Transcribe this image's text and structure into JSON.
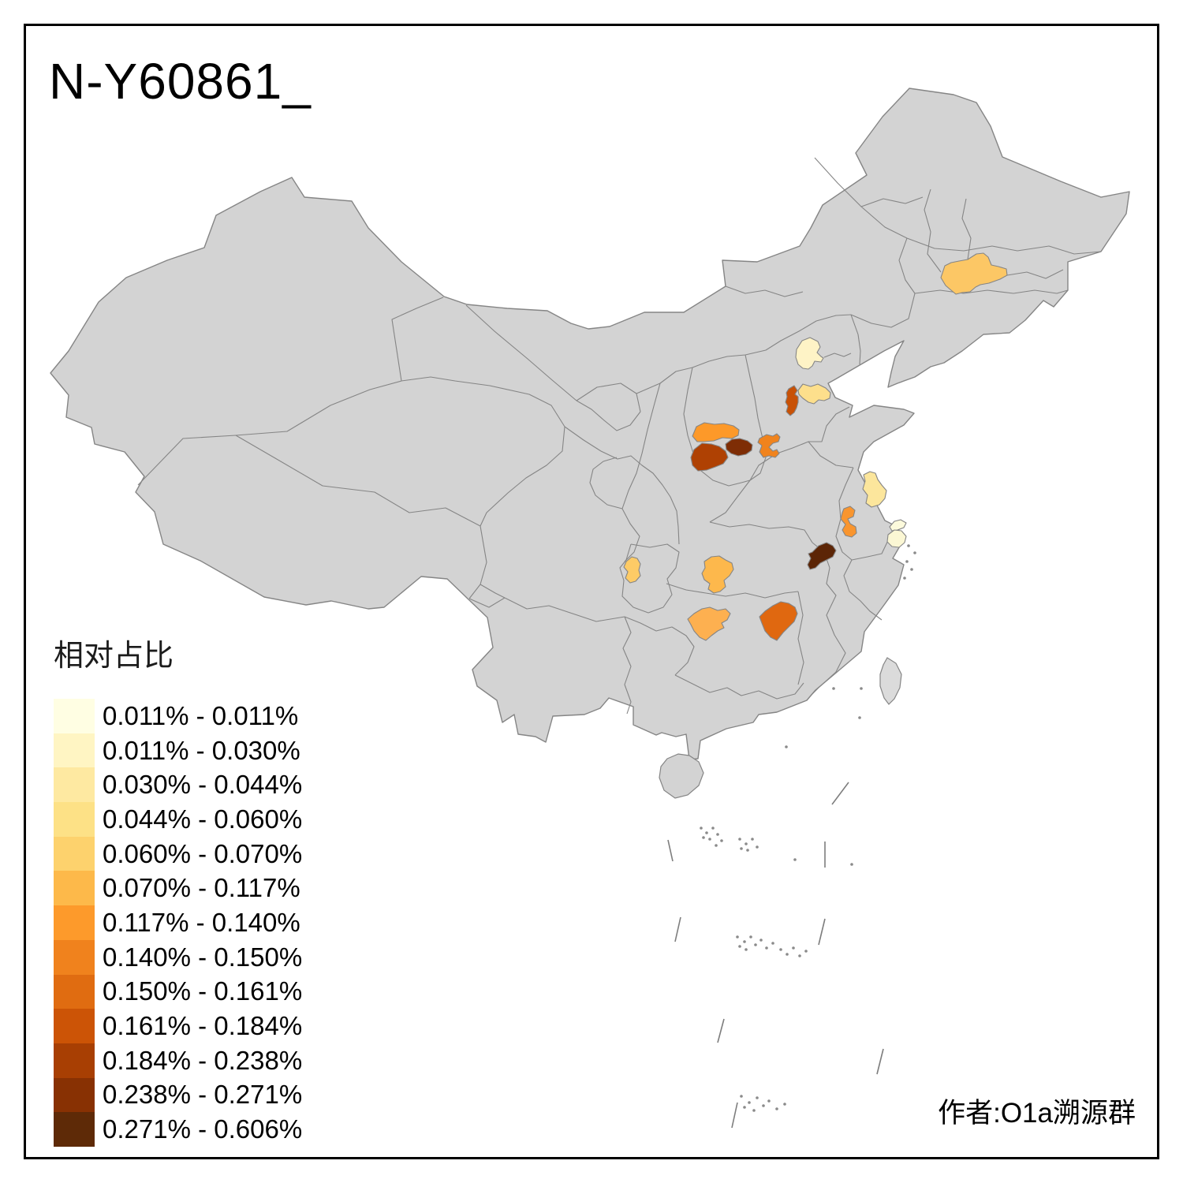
{
  "title": "N-Y60861_",
  "attribution": "作者:O1a溯源群",
  "legend": {
    "title": "相对占比",
    "items": [
      {
        "color": "#FFFEE3",
        "label": "0.011% - 0.011%"
      },
      {
        "color": "#FFF5C3",
        "label": "0.011% - 0.030%"
      },
      {
        "color": "#FEE9A1",
        "label": "0.030% - 0.044%"
      },
      {
        "color": "#FDE186",
        "label": "0.044% - 0.060%"
      },
      {
        "color": "#FDD26D",
        "label": "0.060% - 0.070%"
      },
      {
        "color": "#FDB94A",
        "label": "0.070% - 0.117%"
      },
      {
        "color": "#FD9A2B",
        "label": "0.117% - 0.140%"
      },
      {
        "color": "#F0821D",
        "label": "0.140% - 0.150%"
      },
      {
        "color": "#E06C11",
        "label": "0.150% - 0.161%"
      },
      {
        "color": "#CC5406",
        "label": "0.161% - 0.184%"
      },
      {
        "color": "#A83F03",
        "label": "0.184% - 0.238%"
      },
      {
        "color": "#883103",
        "label": "0.238% - 0.271%"
      },
      {
        "color": "#5E2A07",
        "label": "0.271% - 0.606%"
      }
    ]
  },
  "map": {
    "base_fill": "#D3D3D3",
    "taiwan_fill": "#DBDBDB",
    "boundary_color": "#858585",
    "regions": [
      {
        "id": "harbin",
        "fill": "#FCC765"
      },
      {
        "id": "beijing",
        "fill": "#FEF3C6"
      },
      {
        "id": "langfang",
        "fill": "#FDDF8C"
      },
      {
        "id": "tianjin",
        "fill": "#C85106"
      },
      {
        "id": "xinzhou",
        "fill": "#FD9929"
      },
      {
        "id": "lvliang",
        "fill": "#AF4103"
      },
      {
        "id": "jinzhong",
        "fill": "#7E2D05"
      },
      {
        "id": "shijiazhuang",
        "fill": "#F0831D"
      },
      {
        "id": "yancheng",
        "fill": "#FCE69C"
      },
      {
        "id": "huaian",
        "fill": "#F9952E"
      },
      {
        "id": "chuzhou",
        "fill": "#5C2506"
      },
      {
        "id": "shanghai-chongming",
        "fill": "#FCFADC"
      },
      {
        "id": "shanghai",
        "fill": "#FBF7D4"
      },
      {
        "id": "chongqing-area",
        "fill": "#FDCB66"
      },
      {
        "id": "hubei-west",
        "fill": "#FDB84C"
      },
      {
        "id": "huaihua",
        "fill": "#FDB050"
      },
      {
        "id": "changsha",
        "fill": "#E06810"
      }
    ]
  }
}
